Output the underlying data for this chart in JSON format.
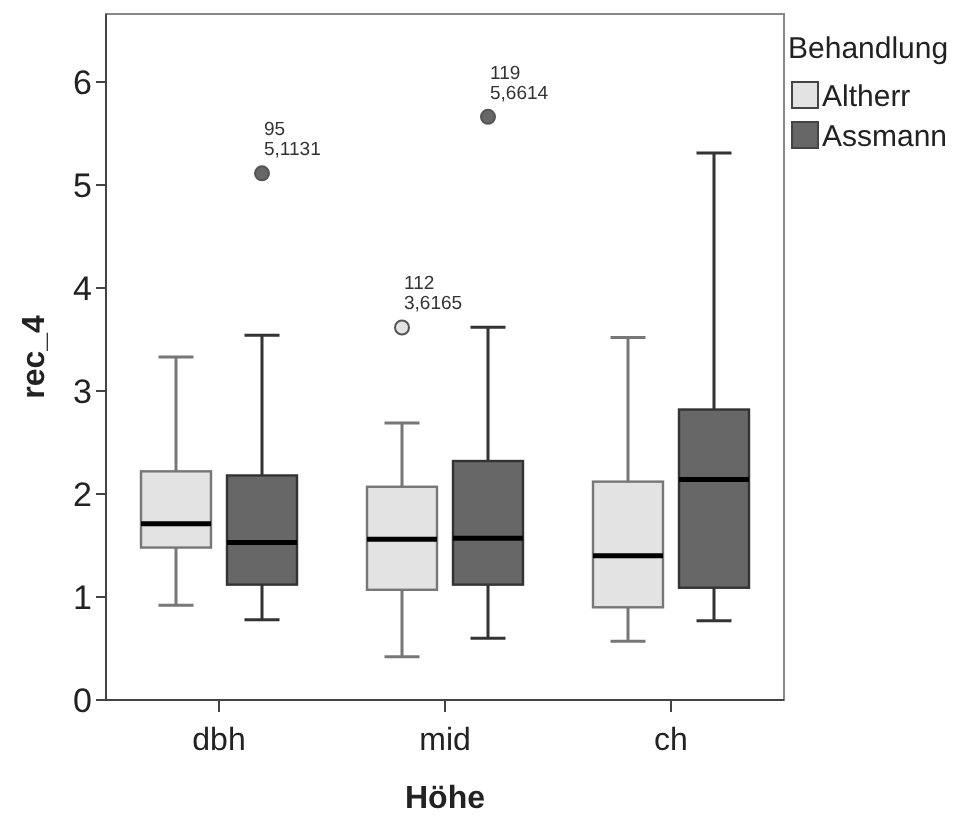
{
  "chart_data": {
    "type": "box",
    "xlabel": "Höhe",
    "ylabel": "rec_4",
    "legend_title": "Behandlung",
    "legend": "top right",
    "grid": false,
    "categories": [
      "dbh",
      "mid",
      "ch"
    ],
    "ylim": [
      0,
      6.66
    ],
    "yticks": [
      0,
      1,
      2,
      3,
      4,
      5,
      6
    ],
    "series": [
      {
        "name": "Altherr",
        "color": "#e3e3e3",
        "boxes": [
          {
            "low": 0.92,
            "q1": 1.48,
            "median": 1.71,
            "q3": 2.22,
            "high": 3.33
          },
          {
            "low": 0.42,
            "q1": 1.07,
            "median": 1.56,
            "q3": 2.07,
            "high": 2.69,
            "outliers": [
              3.6165
            ]
          },
          {
            "low": 0.57,
            "q1": 0.9,
            "median": 1.4,
            "q3": 2.12,
            "high": 3.52
          }
        ]
      },
      {
        "name": "Assmann",
        "color": "#676767",
        "boxes": [
          {
            "low": 0.78,
            "q1": 1.12,
            "median": 1.53,
            "q3": 2.18,
            "high": 3.54,
            "outliers": [
              5.1131
            ]
          },
          {
            "low": 0.6,
            "q1": 1.12,
            "median": 1.57,
            "q3": 2.32,
            "high": 3.62,
            "outliers": [
              5.6614
            ]
          },
          {
            "low": 0.77,
            "q1": 1.09,
            "median": 2.14,
            "q3": 2.82,
            "high": 5.31
          }
        ]
      }
    ],
    "annotations": [
      "95\n5,1131",
      "112\n3,6165",
      "119\n5,6614"
    ]
  }
}
